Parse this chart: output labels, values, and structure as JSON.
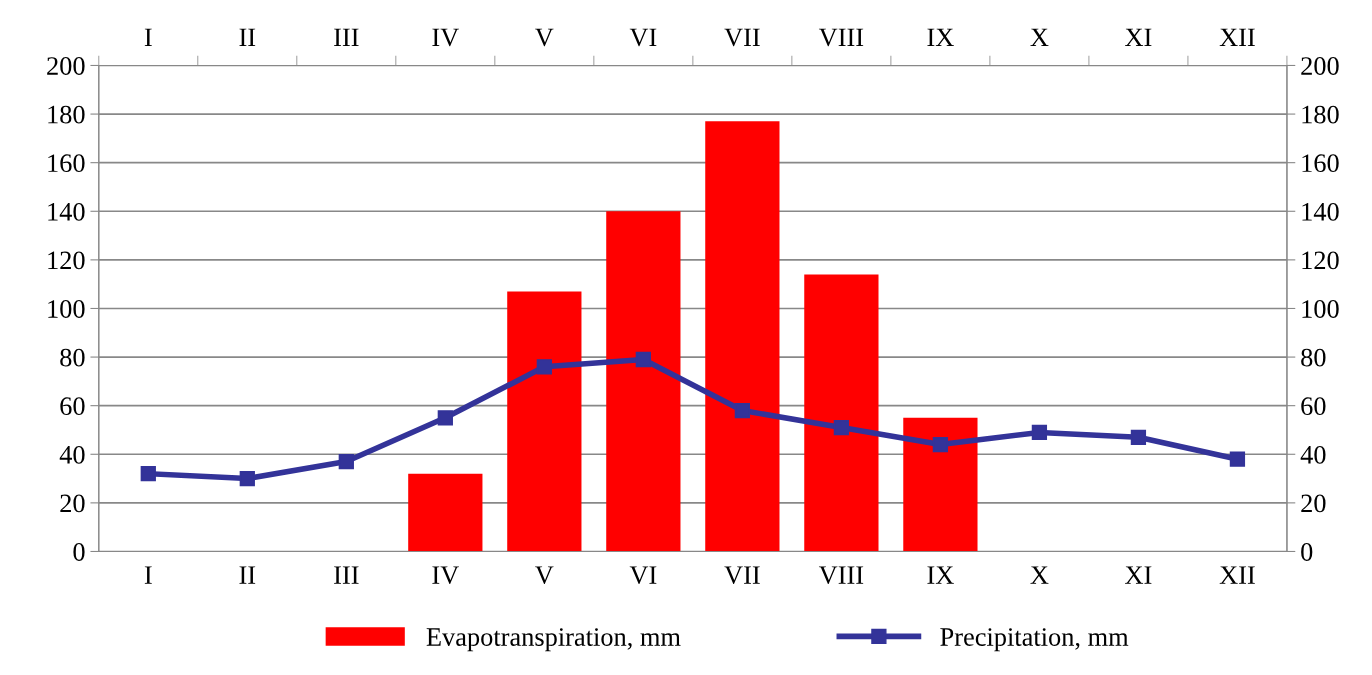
{
  "chart_data": {
    "type": "bar",
    "categories": [
      "I",
      "II",
      "III",
      "IV",
      "V",
      "VI",
      "VII",
      "VIII",
      "IX",
      "X",
      "XI",
      "XII"
    ],
    "series": [
      {
        "name": "Evapotranspiration, mm",
        "color": "#ff0000",
        "values": [
          null,
          null,
          null,
          32,
          107,
          140,
          177,
          114,
          55,
          null,
          null,
          null
        ]
      },
      {
        "name": "Precipitation, mm",
        "type": "line",
        "color": "#333399",
        "marker": "square",
        "values": [
          32,
          30,
          37,
          55,
          76,
          79,
          58,
          51,
          44,
          49,
          47,
          38
        ]
      }
    ],
    "ylim": [
      0,
      200
    ],
    "yticks": [
      0,
      20,
      40,
      60,
      80,
      100,
      120,
      140,
      160,
      180,
      200
    ],
    "y2lim": [
      0,
      200
    ],
    "y2ticks": [
      0,
      20,
      40,
      60,
      80,
      100,
      120,
      140,
      160,
      180,
      200
    ],
    "grid": "y",
    "legend": "bottom"
  }
}
